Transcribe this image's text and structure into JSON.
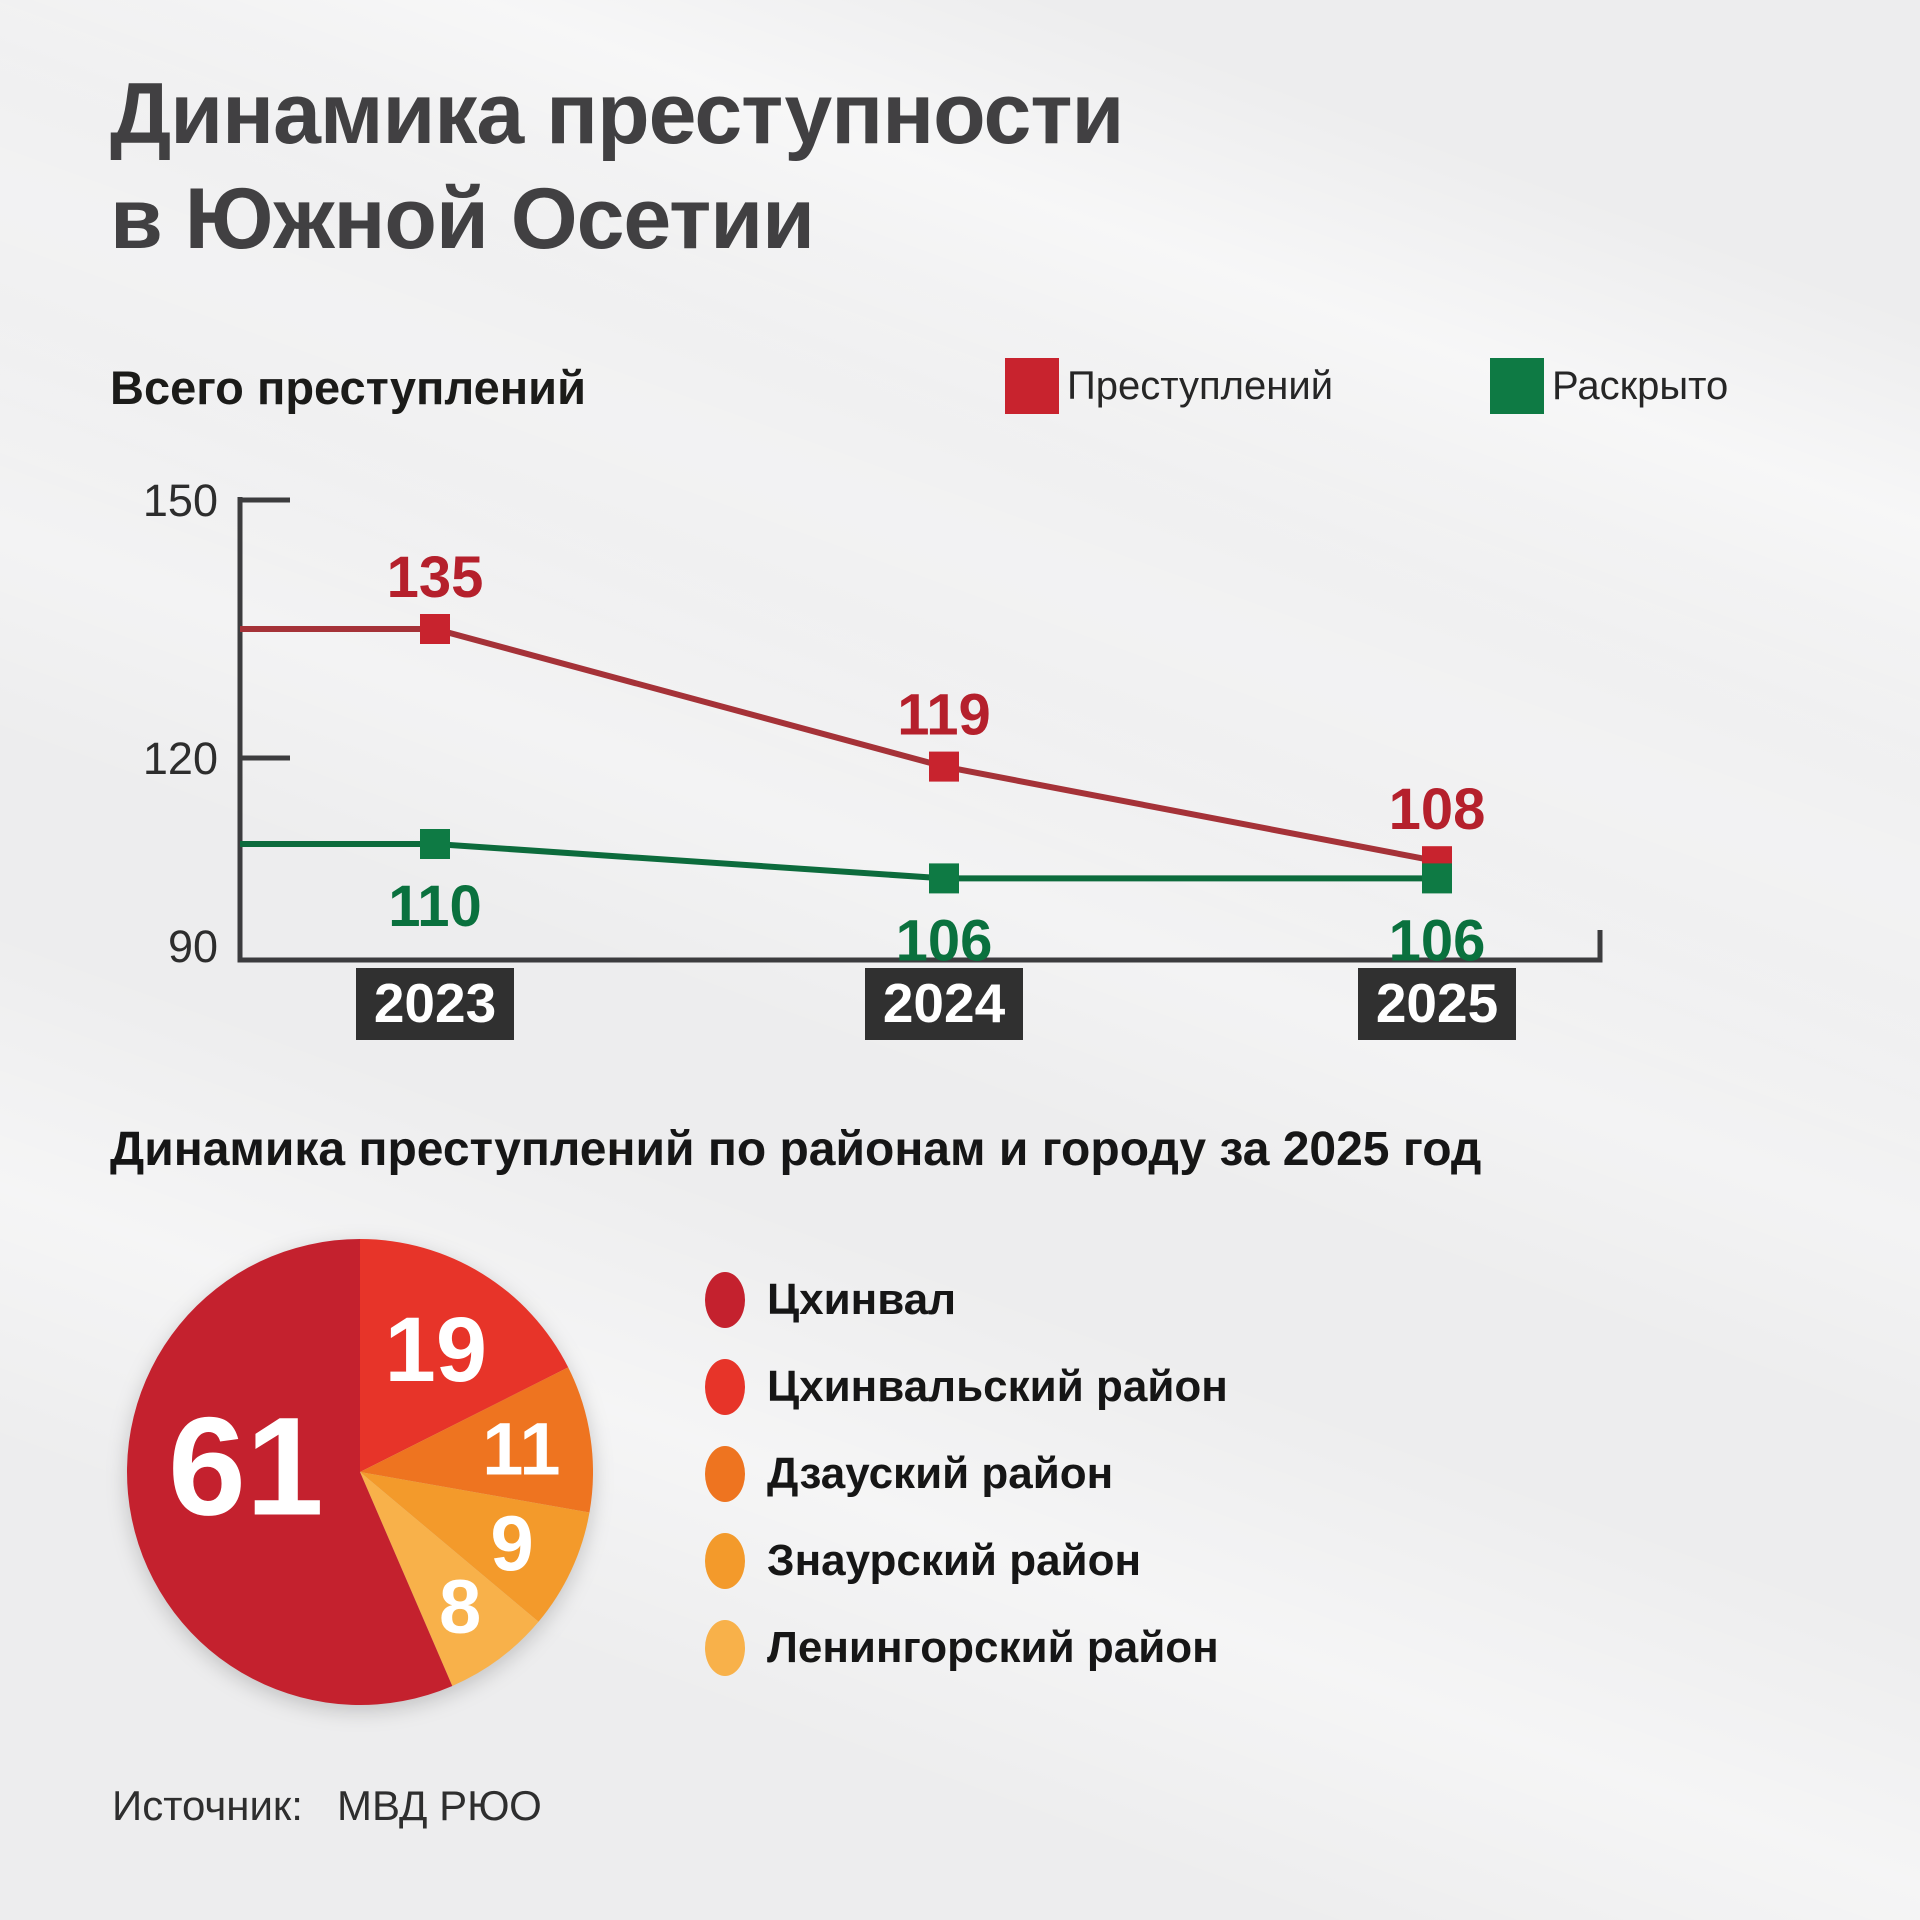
{
  "title": {
    "line1": "Динамика преступности",
    "line2": "в Южной Осетии"
  },
  "source": {
    "label": "Источник:",
    "value": "МВД РЮО"
  },
  "chart_data": [
    {
      "type": "line",
      "title": "Всего преступлений",
      "x": [
        "2023",
        "2024",
        "2025"
      ],
      "series": [
        {
          "name": "Преступлений",
          "values": [
            135,
            119,
            108
          ],
          "marker_color": "#c8232e",
          "line_color": "#a53238",
          "label_color": "#b5202c"
        },
        {
          "name": "Раскрыто",
          "values": [
            110,
            106,
            106
          ],
          "marker_color": "#0e7a44",
          "line_color": "#0c6b3c",
          "label_color": "#0a713e"
        }
      ],
      "ylim": [
        90,
        150
      ],
      "yticks": [
        150,
        120,
        90
      ],
      "grid": false,
      "legend_position": "top-right",
      "axis_color": "#3c3c3e",
      "year_box_color": "#303030",
      "year_text_color": "#ffffff"
    },
    {
      "type": "pie",
      "title": "Динамика преступлений по районам и городу за 2025 год",
      "total": 108,
      "slices": [
        {
          "label": "Цхинвал",
          "value": 61,
          "color": "#c4212e"
        },
        {
          "label": "Цхинвальский район",
          "value": 19,
          "color": "#e73429"
        },
        {
          "label": "Дзауский район",
          "value": 11,
          "color": "#ee7420"
        },
        {
          "label": "Знаурский район",
          "value": 9,
          "color": "#f39a2b"
        },
        {
          "label": "Ленингорский район",
          "value": 8,
          "color": "#f8b14a"
        }
      ],
      "value_text_color": "#ffffff"
    }
  ]
}
